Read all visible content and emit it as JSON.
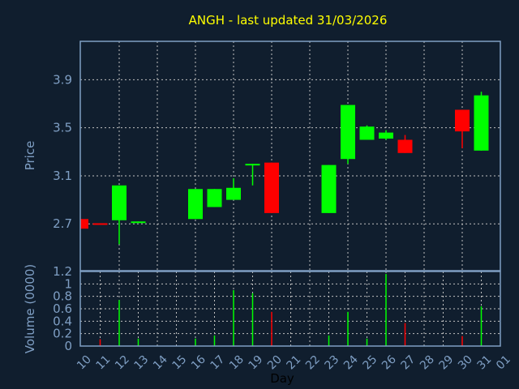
{
  "chart_data": {
    "type": "candlestick",
    "title": "ANGH - last updated 31/03/2026",
    "xlabel": "Day",
    "price_ylabel": "Price",
    "volume_ylabel": "Volume (0000)",
    "x_ticks": [
      "10",
      "11",
      "12",
      "13",
      "14",
      "15",
      "16",
      "17",
      "18",
      "19",
      "20",
      "21",
      "22",
      "23",
      "24",
      "25",
      "26",
      "27",
      "28",
      "29",
      "30",
      "31",
      "01"
    ],
    "price_ticks": [
      2.7,
      3.1,
      3.5,
      3.9
    ],
    "price_ylim": [
      2.31,
      4.22
    ],
    "volume_ticks": [
      0,
      0.2,
      0.4,
      0.6,
      0.8,
      1,
      1.2
    ],
    "volume_ylim": [
      0,
      1.2
    ],
    "grid": true,
    "colors": {
      "up": "#00ff00",
      "down": "#ff0000",
      "title": "#ffff00",
      "axis": "#7f9fc4",
      "background": "#101e2e"
    },
    "candles": [
      {
        "day": "10",
        "open": 2.74,
        "high": 2.74,
        "low": 2.66,
        "close": 2.66,
        "volume": 0
      },
      {
        "day": "11",
        "open": 2.705,
        "high": 2.705,
        "low": 2.7,
        "close": 2.7,
        "volume": 0.11
      },
      {
        "day": "12",
        "open": 2.73,
        "high": 3.02,
        "low": 2.53,
        "close": 3.02,
        "volume": 0.74
      },
      {
        "day": "13",
        "open": 2.71,
        "high": 2.72,
        "low": 2.71,
        "close": 2.72,
        "volume": 0.12
      },
      {
        "day": "16",
        "open": 2.74,
        "high": 2.99,
        "low": 2.74,
        "close": 2.99,
        "volume": 0.12
      },
      {
        "day": "17",
        "open": 2.84,
        "high": 2.99,
        "low": 2.84,
        "close": 2.99,
        "volume": 0.17
      },
      {
        "day": "18",
        "open": 2.9,
        "high": 3.08,
        "low": 2.9,
        "close": 3.0,
        "volume": 0.9
      },
      {
        "day": "19",
        "open": 3.19,
        "high": 3.2,
        "low": 3.02,
        "close": 3.2,
        "volume": 0.85
      },
      {
        "day": "20",
        "open": 3.21,
        "high": 3.21,
        "low": 2.79,
        "close": 2.79,
        "volume": 0.55
      },
      {
        "day": "23",
        "open": 2.79,
        "high": 3.19,
        "low": 2.79,
        "close": 3.19,
        "volume": 0.17
      },
      {
        "day": "24",
        "open": 3.24,
        "high": 3.69,
        "low": 3.2,
        "close": 3.69,
        "volume": 0.55
      },
      {
        "day": "25",
        "open": 3.4,
        "high": 3.52,
        "low": 3.4,
        "close": 3.51,
        "volume": 0.12
      },
      {
        "day": "26",
        "open": 3.41,
        "high": 3.48,
        "low": 3.4,
        "close": 3.46,
        "volume": 1.16
      },
      {
        "day": "27",
        "open": 3.4,
        "high": 3.44,
        "low": 3.29,
        "close": 3.29,
        "volume": 0.37
      },
      {
        "day": "30",
        "open": 3.65,
        "high": 3.65,
        "low": 3.33,
        "close": 3.47,
        "volume": 0.16
      },
      {
        "day": "31",
        "open": 3.31,
        "high": 3.8,
        "low": 3.31,
        "close": 3.77,
        "volume": 0.64
      }
    ]
  }
}
